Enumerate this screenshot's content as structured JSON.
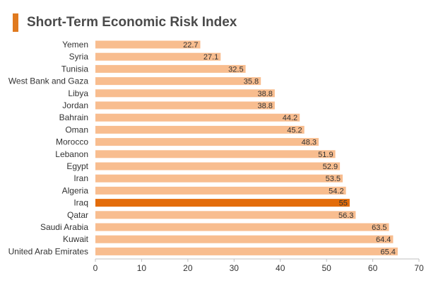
{
  "title": "Short-Term Economic Risk Index",
  "colors": {
    "accent": "#E07A1F",
    "bar": "#F8BD8F",
    "highlight_bar": "#E36C0A",
    "axis": "#BFBFBF"
  },
  "chart_data": {
    "type": "bar",
    "orientation": "horizontal",
    "title": "Short-Term Economic Risk Index",
    "categories": [
      "Yemen",
      "Syria",
      "Tunisia",
      "West Bank and Gaza",
      "Libya",
      "Jordan",
      "Bahrain",
      "Oman",
      "Morocco",
      "Lebanon",
      "Egypt",
      "Iran",
      "Algeria",
      "Iraq",
      "Qatar",
      "Saudi Arabia",
      "Kuwait",
      "United Arab Emirates"
    ],
    "values": [
      22.7,
      27.1,
      32.5,
      35.8,
      38.8,
      38.8,
      44.2,
      45.2,
      48.3,
      51.9,
      52.9,
      53.5,
      54.2,
      55,
      56.3,
      63.5,
      64.4,
      65.4
    ],
    "value_labels": [
      "22.7",
      "27.1",
      "32.5",
      "35.8",
      "38.8",
      "38.8",
      "44.2",
      "45.2",
      "48.3",
      "51.9",
      "52.9",
      "53.5",
      "54.2",
      "55",
      "56.3",
      "63.5",
      "64.4",
      "65.4"
    ],
    "highlight": "Iraq",
    "xlim": [
      0,
      70
    ],
    "xticks": [
      "0",
      "10",
      "20",
      "30",
      "40",
      "50",
      "60",
      "70"
    ],
    "xlabel": "",
    "ylabel": "",
    "grid": false,
    "legend": "none"
  }
}
